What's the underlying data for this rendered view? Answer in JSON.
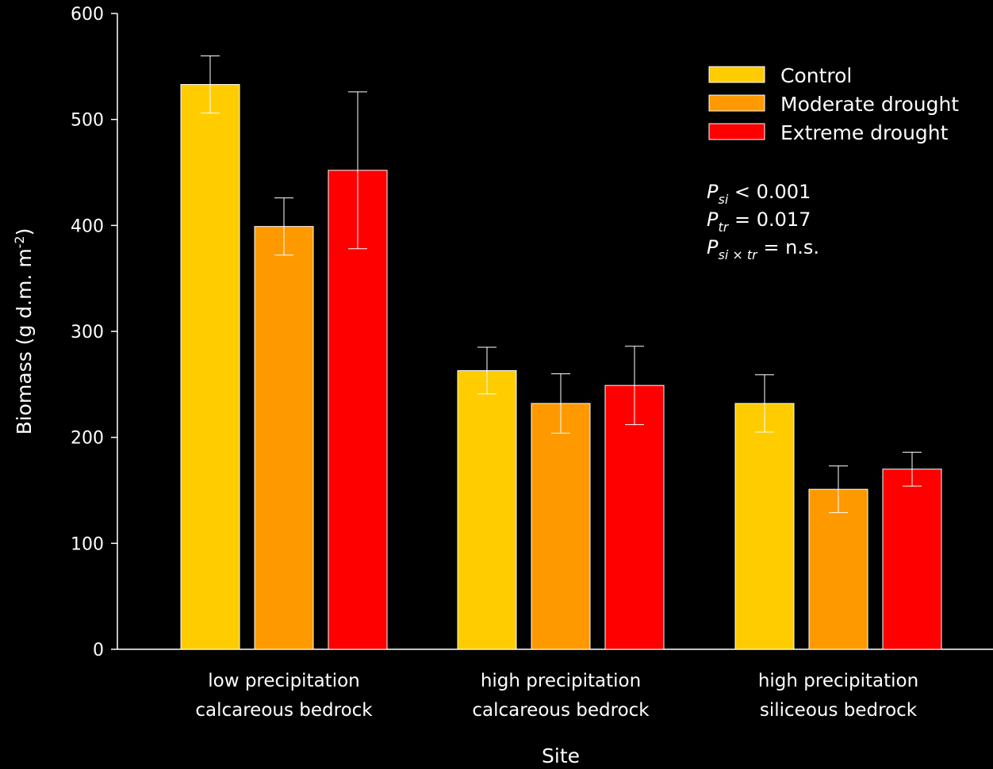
{
  "chart_data": {
    "type": "bar",
    "categories": [
      [
        "low precipitation",
        "calcareous bedrock"
      ],
      [
        "high precipitation",
        "calcareous bedrock"
      ],
      [
        "high precipitation",
        "siliceous bedrock"
      ]
    ],
    "series": [
      {
        "name": "Control",
        "color": "#FFCC00",
        "values": [
          533,
          263,
          232
        ],
        "err": [
          27,
          22,
          27
        ]
      },
      {
        "name": "Moderate drought",
        "color": "#FF9900",
        "values": [
          399,
          232,
          151
        ],
        "err": [
          27,
          28,
          22
        ]
      },
      {
        "name": "Extreme drought",
        "color": "#FF0000",
        "values": [
          452,
          249,
          170
        ],
        "err": [
          74,
          37,
          16
        ]
      }
    ],
    "xlabel": "Site",
    "ylabel": "Biomass (g d.m. m",
    "ylabel_sup": "-2",
    "ylabel_end": ")",
    "ylim": [
      0,
      600
    ],
    "yticks": [
      0,
      100,
      200,
      300,
      400,
      500,
      600
    ],
    "grid": false,
    "legend_position": "top-right",
    "annotations": [
      {
        "p": "P",
        "sub": "si",
        "text": " < 0.001"
      },
      {
        "p": "P",
        "sub": "tr",
        "text": " = 0.017"
      },
      {
        "p": "P",
        "sub": "si × tr",
        "text": " = n.s."
      }
    ]
  }
}
